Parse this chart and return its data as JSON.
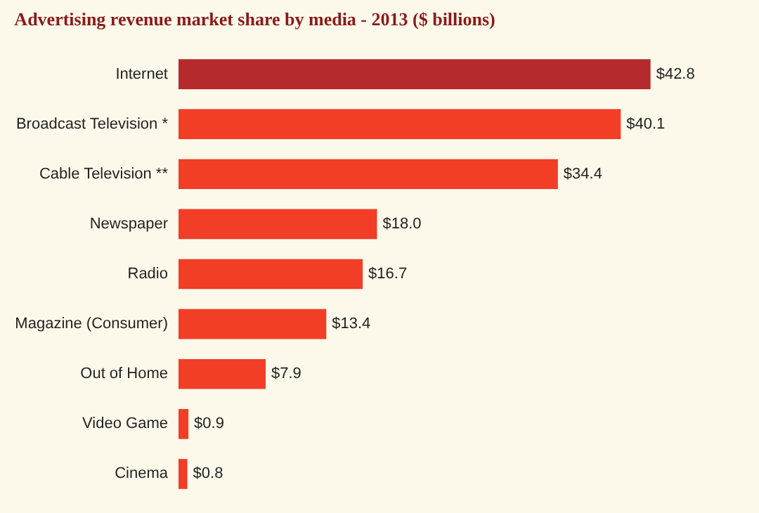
{
  "chart_data": {
    "type": "bar",
    "orientation": "horizontal",
    "title": "Advertising revenue market share by media - 2013 ($ billions)",
    "categories": [
      "Internet",
      "Broadcast Television *",
      "Cable Television **",
      "Newspaper",
      "Radio",
      "Magazine (Consumer)",
      "Out of Home",
      "Video Game",
      "Cinema"
    ],
    "values": [
      42.8,
      40.1,
      34.4,
      18.0,
      16.7,
      13.4,
      7.9,
      0.9,
      0.8
    ],
    "colors": [
      "#b52a2c",
      "#f23d27",
      "#f23d27",
      "#f23d27",
      "#f23d27",
      "#f23d27",
      "#f23d27",
      "#f23d27",
      "#f23d27"
    ],
    "value_labels": [
      "$42.8",
      "$40.1",
      "$34.4",
      "$18.0",
      "$16.7",
      "$13.4",
      "$7.9",
      "$0.9",
      "$0.8"
    ]
  }
}
